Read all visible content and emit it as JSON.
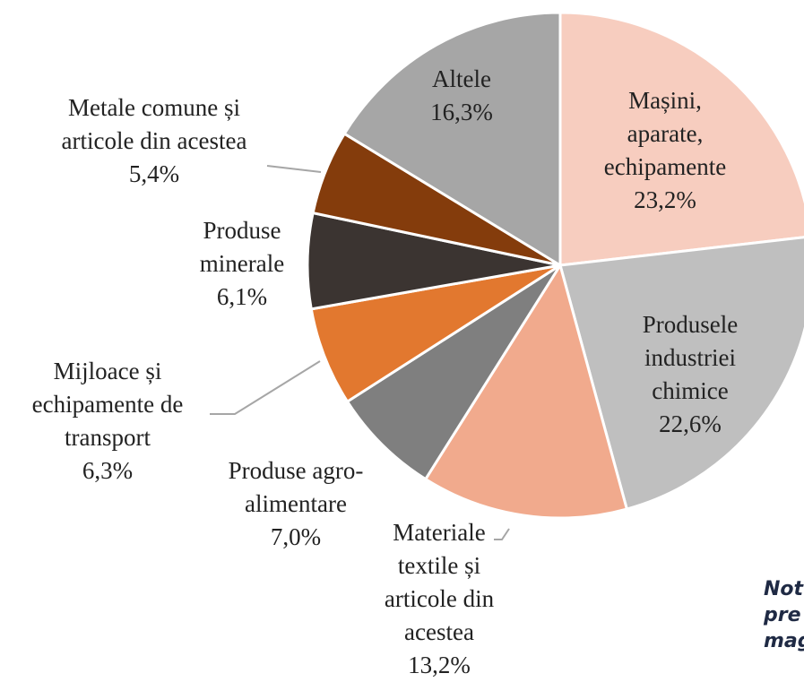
{
  "chart_data": {
    "type": "pie",
    "categories": [
      "Mașini,\naparate,\nechipamente",
      "Produsele\nindustriei\nchimice",
      "Materiale\ntextile și\narticole din\nacestea",
      "Produse agro-\nalimentare",
      "Mijloace și\nechipamente de\ntransport",
      "Produse\nminerale",
      "Metale comune și\narticole din acestea",
      "Altele"
    ],
    "values": [
      23.2,
      22.6,
      13.2,
      7.0,
      6.3,
      6.1,
      5.4,
      16.3
    ],
    "value_labels": [
      "23,2%",
      "22,6%",
      "13,2%",
      "7,0%",
      "6,3%",
      "6,1%",
      "5,4%",
      "16,3%"
    ],
    "colors": [
      "#f7cdbf",
      "#bfbfbf",
      "#f1aa8d",
      "#7f7f7f",
      "#e2782f",
      "#3b3431",
      "#843c0c",
      "#a6a6a6"
    ],
    "note": [
      "Not",
      "pre",
      "mag"
    ]
  }
}
